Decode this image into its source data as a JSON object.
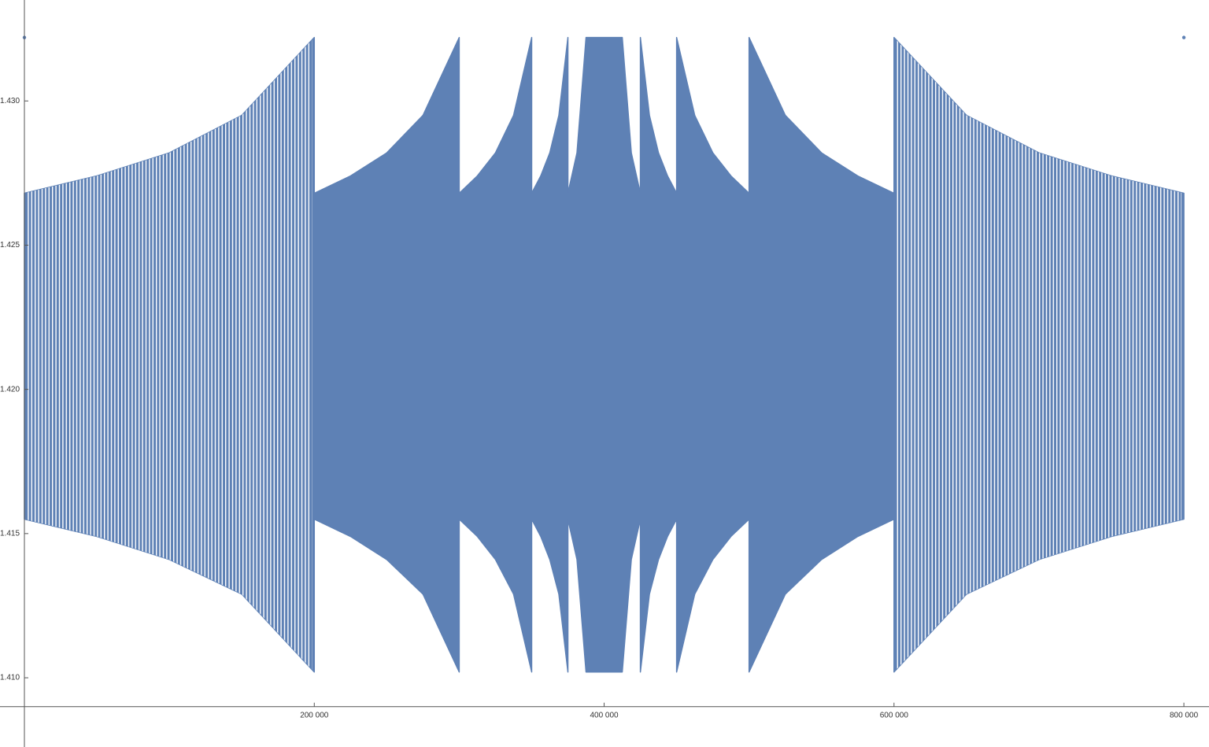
{
  "chart_data": {
    "type": "band",
    "xlim": [
      -16840,
      817330
    ],
    "ylim": [
      1.4076,
      1.4335
    ],
    "axes_origin": [
      0,
      1.409
    ],
    "xticks": [
      {
        "value": 200000,
        "label": "200 000"
      },
      {
        "value": 400000,
        "label": "400 000"
      },
      {
        "value": 600000,
        "label": "600 000"
      },
      {
        "value": 800000,
        "label": "800 000"
      }
    ],
    "yticks": [
      {
        "value": 1.41,
        "label": "1.410"
      },
      1.415,
      {
        "value": 1.42,
        "label": "1.420"
      },
      1.425,
      {
        "value": 1.43,
        "label": "1.430"
      }
    ],
    "series": [
      {
        "color": "#5e81b5",
        "x": [
          0,
          50000,
          100000,
          150000,
          200000,
          200000,
          225000,
          250000,
          275000,
          300000,
          300000,
          312500,
          325000,
          337500,
          350000,
          350000,
          356250,
          362500,
          368750,
          375000,
          375000,
          381250,
          387500,
          412500,
          418750,
          425000,
          425000,
          431250,
          437500,
          443750,
          450000,
          450000,
          462500,
          475000,
          487500,
          500000,
          500000,
          525000,
          550000,
          575000,
          600000,
          600000,
          650000,
          700000,
          750000,
          800000
        ],
        "high": [
          1.4268,
          1.4274,
          1.4282,
          1.4295,
          1.4322,
          1.4268,
          1.4274,
          1.4282,
          1.4295,
          1.4322,
          1.4268,
          1.4274,
          1.4282,
          1.4295,
          1.4322,
          1.4268,
          1.4274,
          1.4282,
          1.4295,
          1.4322,
          1.4268,
          1.4282,
          1.4322,
          1.4322,
          1.4282,
          1.4268,
          1.4322,
          1.4295,
          1.4282,
          1.4274,
          1.4268,
          1.4322,
          1.4295,
          1.4282,
          1.4274,
          1.4268,
          1.4322,
          1.4295,
          1.4282,
          1.4274,
          1.4268,
          1.4322,
          1.4295,
          1.4282,
          1.4274,
          1.4268
        ],
        "low": [
          1.4155,
          1.4149,
          1.4141,
          1.4129,
          1.4102,
          1.4155,
          1.4149,
          1.4141,
          1.4129,
          1.4102,
          1.4155,
          1.4149,
          1.4141,
          1.4129,
          1.4102,
          1.4155,
          1.4149,
          1.4141,
          1.4129,
          1.4102,
          1.4155,
          1.4141,
          1.4102,
          1.4102,
          1.4141,
          1.4155,
          1.4102,
          1.4129,
          1.4141,
          1.4149,
          1.4155,
          1.4102,
          1.4129,
          1.4141,
          1.4149,
          1.4155,
          1.4102,
          1.4129,
          1.4141,
          1.4149,
          1.4155,
          1.4102,
          1.4129,
          1.4141,
          1.4149,
          1.4155
        ],
        "hatched_ranges": [
          [
            0,
            200000
          ],
          [
            600000,
            800000
          ]
        ]
      }
    ],
    "points": {
      "color": "#5e81b5",
      "x": [
        0,
        800000
      ],
      "y": [
        1.4322,
        1.4322
      ]
    }
  }
}
